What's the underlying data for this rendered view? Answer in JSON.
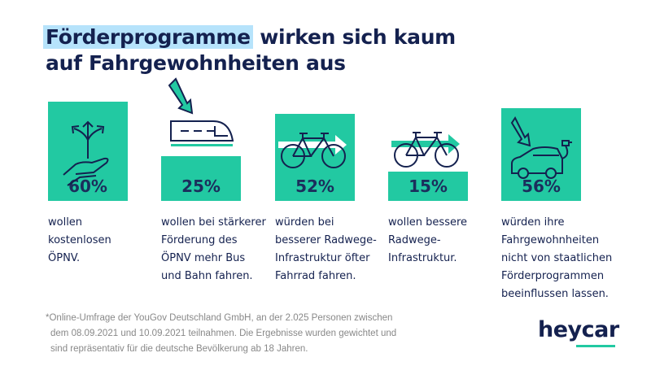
{
  "title": {
    "highlight": "Förderprogramme",
    "line1_rest": " wirken sich kaum",
    "line2": "auf Fahrgewohnheiten aus"
  },
  "colors": {
    "bar": "#22c9a2",
    "text": "#14214f",
    "highlight": "#b6e3fb"
  },
  "chart_data": {
    "type": "bar",
    "categories": [
      "wollen kostenlosen ÖPNV.",
      "wollen bei stärkerer Förderung des ÖPNV mehr Bus und Bahn fahren.",
      "würden bei besserer Radwege-Infrastruktur öfter Fahrrad fahren.",
      "wollen bessere Radwege-Infrastruktur.",
      "würden ihre Fahrgewohnheiten nicht von staatlichen Förderprogrammen beeinflussen lassen."
    ],
    "values": [
      60,
      25,
      52,
      15,
      56
    ],
    "labels": [
      "60%",
      "25%",
      "52%",
      "15%",
      "56%"
    ],
    "icons": [
      "hand-arrows-icon",
      "train-icon",
      "bicycle-arrow-icon",
      "bicycle-arrow-icon",
      "electric-car-icon"
    ],
    "unit": "%"
  },
  "descriptions": [
    [
      "wollen",
      "kostenlosen",
      "ÖPNV."
    ],
    [
      "wollen bei stärkerer",
      "Förderung des",
      "ÖPNV mehr Bus",
      "und Bahn fahren."
    ],
    [
      "würden bei",
      "besserer Radwege-",
      "Infrastruktur öfter",
      "Fahrrad fahren."
    ],
    [
      "wollen bessere",
      "Radwege-",
      "Infrastruktur."
    ],
    [
      "würden ihre",
      "Fahrgewohnheiten",
      "nicht von staatlichen",
      "Förderprogrammen",
      "beeinflussen lassen."
    ]
  ],
  "footnote": [
    "*Online-Umfrage der YouGov Deutschland GmbH, an der 2.025 Personen zwischen",
    "dem 08.09.2021 und 10.09.2021 teilnahmen. Die Ergebnisse wurden gewichtet und",
    "sind repräsentativ für die deutsche Bevölkerung ab 18 Jahren."
  ],
  "logo": "heycar"
}
